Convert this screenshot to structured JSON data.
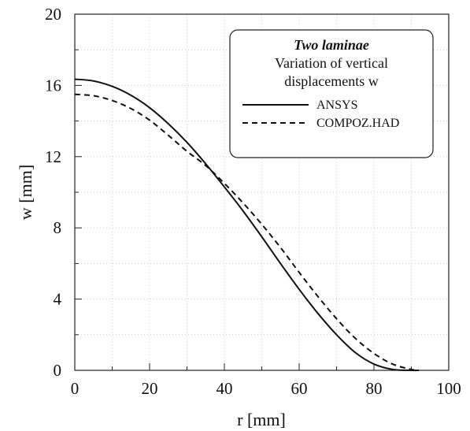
{
  "chart_data": {
    "type": "line",
    "xlabel": "r [mm]",
    "ylabel": "w [mm]",
    "xlim": [
      0,
      100
    ],
    "ylim": [
      0,
      20
    ],
    "xticks": [
      "0",
      "20",
      "40",
      "60",
      "80",
      "100"
    ],
    "yticks": [
      "0",
      "4",
      "8",
      "12",
      "16",
      "20"
    ],
    "grid": true,
    "legend": {
      "title": "Two laminae",
      "subtitle_line1": "Variation of vertical",
      "subtitle_line2": "displacements w",
      "placement": "top-right"
    },
    "series": [
      {
        "name": "ANSYS",
        "style": "solid",
        "x": [
          0,
          5,
          10,
          15,
          20,
          25,
          30,
          35,
          40,
          45,
          50,
          55,
          60,
          65,
          70,
          75,
          80,
          85,
          90,
          92
        ],
        "y": [
          16.35,
          16.25,
          15.95,
          15.45,
          14.75,
          13.85,
          12.8,
          11.6,
          10.3,
          8.95,
          7.5,
          6.0,
          4.55,
          3.2,
          2.0,
          1.0,
          0.35,
          0.05,
          0.0,
          0.0
        ]
      },
      {
        "name": "COMPOZ.HAD",
        "style": "dashed",
        "x": [
          0,
          5,
          10,
          15,
          20,
          25,
          30,
          35,
          40,
          45,
          50,
          55,
          60,
          65,
          70,
          75,
          80,
          85,
          90,
          92
        ],
        "y": [
          15.5,
          15.42,
          15.15,
          14.7,
          14.05,
          13.2,
          12.3,
          11.5,
          10.5,
          9.4,
          8.2,
          6.9,
          5.5,
          4.15,
          2.9,
          1.8,
          0.95,
          0.35,
          0.05,
          0.0
        ]
      }
    ]
  }
}
